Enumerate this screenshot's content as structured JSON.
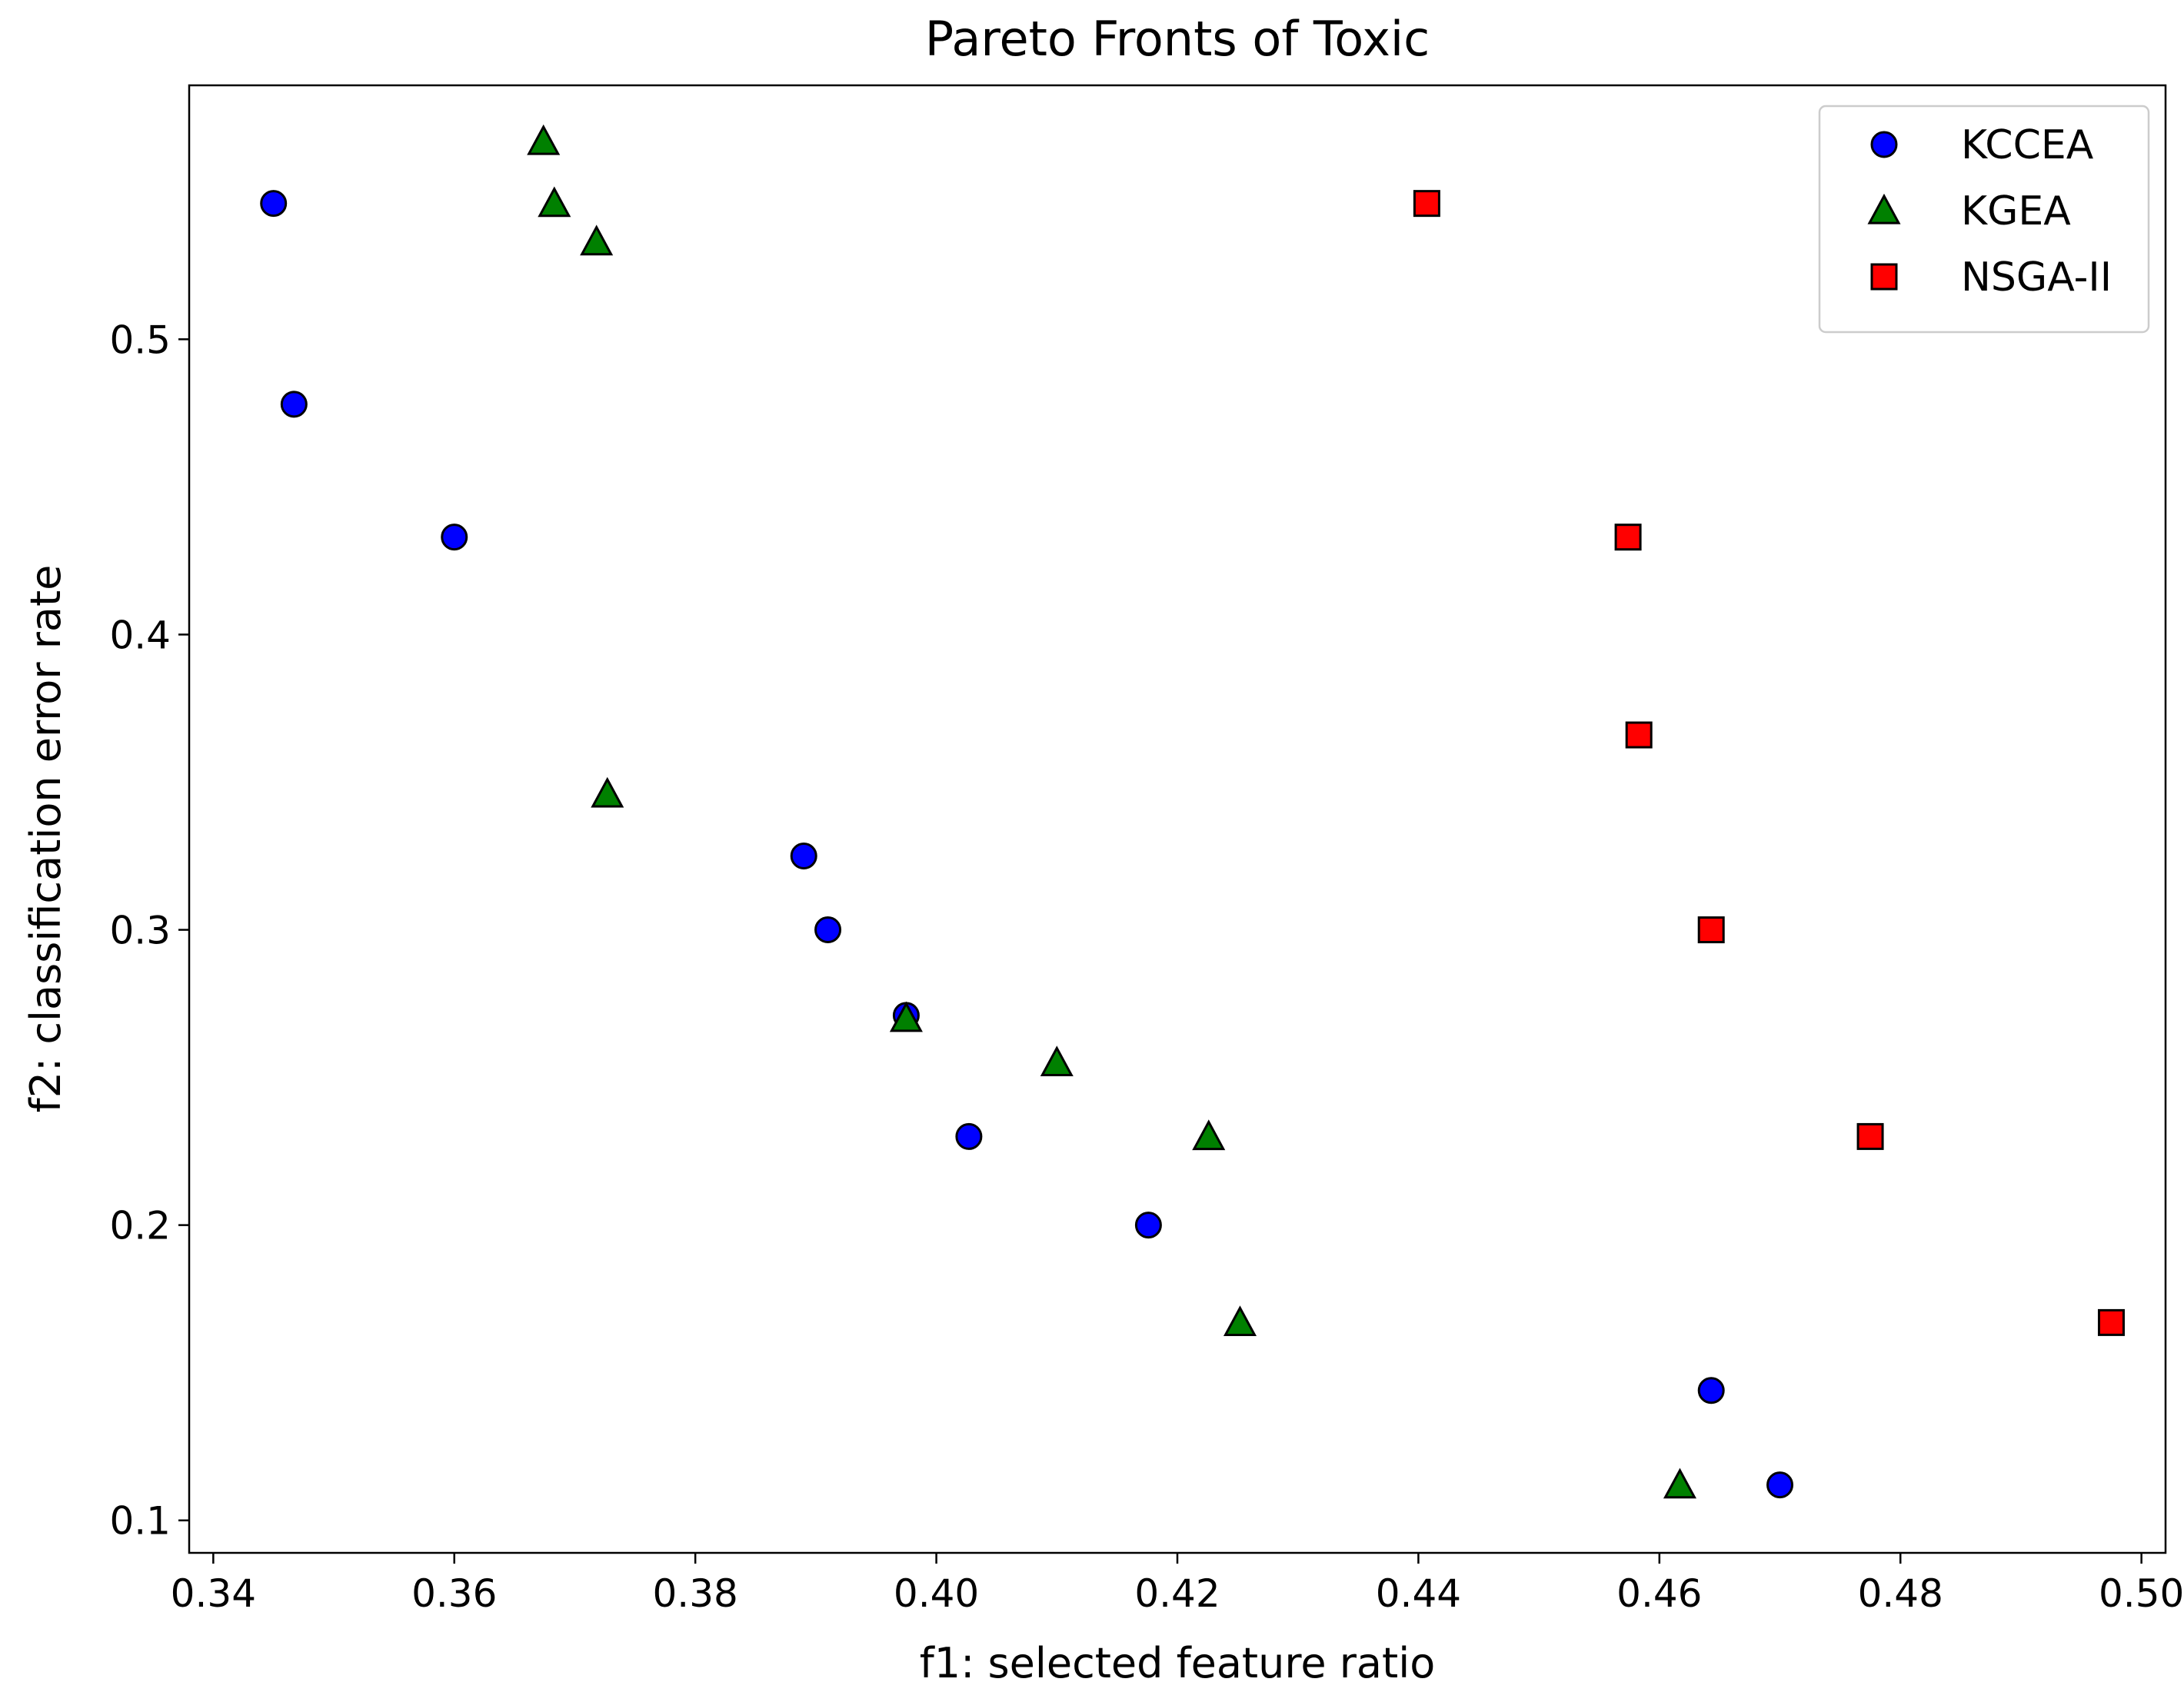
{
  "chart_data": {
    "type": "scatter",
    "title": "Pareto Fronts of Toxic",
    "xlabel": "f1: selected feature ratio",
    "ylabel": "f2: classification error rate",
    "xlim": [
      0.338,
      0.502
    ],
    "ylim": [
      0.089,
      0.586
    ],
    "xticks": [
      "0.34",
      "0.36",
      "0.38",
      "0.40",
      "0.42",
      "0.44",
      "0.46",
      "0.48",
      "0.50"
    ],
    "yticks": [
      "0.1",
      "0.2",
      "0.3",
      "0.4",
      "0.5"
    ],
    "grid": false,
    "legend_position": "upper right",
    "series": [
      {
        "name": "KCCEA",
        "marker": "circle",
        "color": "#0000ff",
        "points": [
          [
            0.345,
            0.546
          ],
          [
            0.3467,
            0.478
          ],
          [
            0.36,
            0.433
          ],
          [
            0.389,
            0.325
          ],
          [
            0.391,
            0.3
          ],
          [
            0.3975,
            0.271
          ],
          [
            0.4027,
            0.23
          ],
          [
            0.4176,
            0.2
          ],
          [
            0.4643,
            0.144
          ],
          [
            0.47,
            0.112
          ]
        ]
      },
      {
        "name": "KGEA",
        "marker": "triangle",
        "color": "#008000",
        "points": [
          [
            0.3674,
            0.567
          ],
          [
            0.3683,
            0.546
          ],
          [
            0.3718,
            0.533
          ],
          [
            0.3727,
            0.346
          ],
          [
            0.3975,
            0.27
          ],
          [
            0.41,
            0.255
          ],
          [
            0.4226,
            0.23
          ],
          [
            0.4252,
            0.167
          ],
          [
            0.4617,
            0.112
          ]
        ]
      },
      {
        "name": "NSGA-II",
        "marker": "square",
        "color": "#ff0000",
        "points": [
          [
            0.4407,
            0.546
          ],
          [
            0.4574,
            0.433
          ],
          [
            0.4583,
            0.366
          ],
          [
            0.4643,
            0.3
          ],
          [
            0.4775,
            0.23
          ],
          [
            0.4975,
            0.167
          ]
        ]
      }
    ]
  }
}
